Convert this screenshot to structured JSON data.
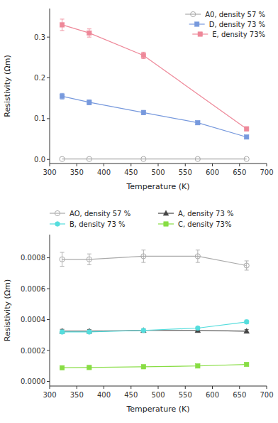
{
  "chart_data": [
    {
      "type": "line",
      "x_label": "Temperature (K)",
      "y_label": "Resistivity (Ωm)",
      "x": [
        323,
        373,
        473,
        573,
        663
      ],
      "series": [
        {
          "name": "A0, density 57 %",
          "color": "#aaaaaa",
          "marker": "open-circle",
          "line_style": "solid",
          "values": [
            0.001,
            0.001,
            0.001,
            0.001,
            0.001
          ]
        },
        {
          "name": "D, density 73 %",
          "color": "#7799dd",
          "marker": "square",
          "line_style": "solid",
          "values": [
            0.155,
            0.14,
            0.115,
            0.09,
            0.055
          ],
          "errors": [
            0.007,
            0.006,
            0.005,
            0.004,
            0.003
          ]
        },
        {
          "name": "E, density 73%",
          "color": "#ee8899",
          "marker": "square",
          "line_style": "solid",
          "x": [
            323,
            373,
            473,
            663
          ],
          "values": [
            0.33,
            0.31,
            0.255,
            0.075
          ],
          "errors": [
            0.014,
            0.01,
            0.008,
            0.005
          ]
        }
      ],
      "xlim": [
        300,
        700
      ],
      "xticks": [
        300,
        350,
        400,
        450,
        500,
        550,
        600,
        650,
        700
      ],
      "ylim": [
        -0.01,
        0.37
      ],
      "yticks": [
        {
          "value": 0.0,
          "label": "0.0"
        },
        0.1,
        0.2,
        0.3
      ],
      "grid": false,
      "legend": "upper-right"
    },
    {
      "type": "line",
      "x_label": "Temperature (K)",
      "y_label": "Resistivity (Ωm)",
      "x": [
        323,
        373,
        473,
        573,
        663
      ],
      "series": [
        {
          "name": "AO, density 57 %",
          "color": "#aaaaaa",
          "marker": "open-circle",
          "line_style": "solid",
          "values": [
            0.00079,
            0.00079,
            0.00081,
            0.00081,
            0.00075
          ],
          "errors": [
            4.5e-05,
            3.5e-05,
            4e-05,
            4e-05,
            3e-05
          ]
        },
        {
          "name": "A, density 73 %",
          "color": "#444444",
          "marker": "triangle",
          "line_style": "solid",
          "values": [
            0.000325,
            0.000325,
            0.00033,
            0.00033,
            0.000325
          ],
          "errors": [
            1.2e-05,
            1e-05,
            1e-05,
            1e-05,
            1e-05
          ]
        },
        {
          "name": "B, density 73 %",
          "color": "#55dddd",
          "marker": "circle",
          "line_style": "solid",
          "values": [
            0.00032,
            0.00032,
            0.00033,
            0.000345,
            0.000385
          ],
          "errors": [
            1.2e-05,
            1e-05,
            1e-05,
            1e-05,
            1.2e-05
          ]
        },
        {
          "name": "C, density 73%",
          "color": "#88dd44",
          "marker": "square",
          "line_style": "solid",
          "values": [
            8.8e-05,
            9e-05,
            9.5e-05,
            0.0001,
            0.00011
          ],
          "errors": [
            4e-06,
            4e-06,
            4e-06,
            4e-06,
            4e-06
          ]
        }
      ],
      "xlim": [
        300,
        700
      ],
      "xticks": [
        300,
        350,
        400,
        450,
        500,
        550,
        600,
        650,
        700
      ],
      "ylim": [
        -3e-05,
        0.00095
      ],
      "yticks": [
        {
          "value": 0.0,
          "label": "0.0000"
        },
        {
          "value": 0.0002,
          "label": "0.0002"
        },
        {
          "value": 0.0004,
          "label": "0.0004"
        },
        {
          "value": 0.0006,
          "label": "0.0006"
        },
        {
          "value": 0.0008,
          "label": "0.0008"
        }
      ],
      "grid": false,
      "legend": "top"
    }
  ]
}
